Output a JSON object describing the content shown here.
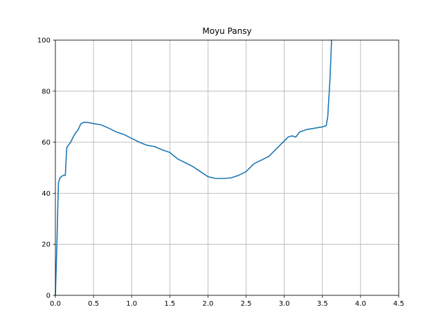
{
  "chart_data": {
    "type": "line",
    "title": "Moyu Pansy",
    "xlabel": "",
    "ylabel": "",
    "xlim": [
      0,
      4.5
    ],
    "ylim": [
      0,
      100
    ],
    "xticks": [
      0.0,
      0.5,
      1.0,
      1.5,
      2.0,
      2.5,
      3.0,
      3.5,
      4.0,
      4.5
    ],
    "xtick_labels": [
      "0.0",
      "0.5",
      "1.0",
      "1.5",
      "2.0",
      "2.5",
      "3.0",
      "3.5",
      "4.0",
      "4.5"
    ],
    "yticks": [
      0,
      20,
      40,
      60,
      80,
      100
    ],
    "ytick_labels": [
      "0",
      "20",
      "40",
      "60",
      "80",
      "100"
    ],
    "grid": true,
    "series": [
      {
        "color": "#1f77b4",
        "x": [
          0.0,
          0.02,
          0.04,
          0.06,
          0.08,
          0.1,
          0.13,
          0.14,
          0.15,
          0.2,
          0.25,
          0.3,
          0.33,
          0.35,
          0.38,
          0.4,
          0.45,
          0.5,
          0.6,
          0.7,
          0.8,
          0.9,
          1.0,
          1.1,
          1.2,
          1.3,
          1.4,
          1.5,
          1.6,
          1.7,
          1.8,
          1.9,
          2.0,
          2.1,
          2.2,
          2.3,
          2.4,
          2.5,
          2.6,
          2.7,
          2.8,
          2.9,
          3.0,
          3.05,
          3.1,
          3.15,
          3.2,
          3.3,
          3.4,
          3.5,
          3.55,
          3.57,
          3.6,
          3.62
        ],
        "y": [
          0.0,
          20.0,
          44.0,
          46.0,
          46.5,
          47.0,
          47.0,
          53.0,
          58.0,
          60.0,
          63.0,
          65.0,
          67.0,
          67.5,
          67.8,
          67.8,
          67.6,
          67.3,
          66.8,
          65.5,
          64.0,
          63.0,
          61.5,
          60.0,
          58.8,
          58.3,
          57.0,
          56.0,
          53.5,
          52.0,
          50.5,
          48.5,
          46.5,
          45.8,
          45.8,
          46.0,
          47.0,
          48.5,
          51.5,
          53.0,
          54.5,
          57.5,
          60.5,
          62.0,
          62.5,
          62.0,
          64.0,
          65.0,
          65.5,
          66.0,
          66.5,
          70.0,
          85.0,
          100.0
        ]
      }
    ]
  }
}
